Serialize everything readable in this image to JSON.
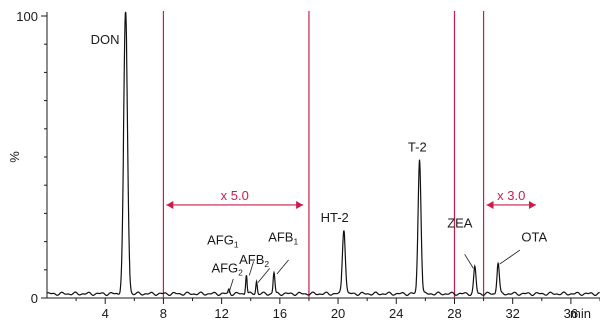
{
  "chart_data": {
    "type": "line",
    "xlabel": "min",
    "ylabel": "%",
    "xlim": [
      0,
      38
    ],
    "ylim": [
      0,
      100
    ],
    "x_ticks": [
      4,
      8,
      12,
      16,
      20,
      24,
      28,
      32,
      36
    ],
    "x_minor_ticks": [
      2,
      6,
      10,
      14,
      18,
      22,
      26,
      30,
      34,
      38
    ],
    "y_ticks": [
      0,
      100
    ],
    "y_minor_ticks": [
      10,
      20,
      30,
      40,
      50,
      60,
      70,
      80,
      90
    ],
    "baseline": 1.5,
    "series": [
      {
        "peaks": [
          {
            "name": "DON",
            "rt": 5.4,
            "height": 100,
            "sigma": 0.13
          },
          {
            "name": "AFG1",
            "rt": 13.7,
            "height": 7,
            "sigma": 0.05
          },
          {
            "name": "AFG2",
            "rt": 12.5,
            "height": 1.5,
            "sigma": 0.05
          },
          {
            "name": "AFB2",
            "rt": 14.4,
            "height": 4.5,
            "sigma": 0.05
          },
          {
            "name": "AFB1",
            "rt": 15.6,
            "height": 7.5,
            "sigma": 0.06
          },
          {
            "name": "HT-2",
            "rt": 20.4,
            "height": 23,
            "sigma": 0.1
          },
          {
            "name": "T-2",
            "rt": 25.6,
            "height": 48,
            "sigma": 0.1
          },
          {
            "name": "ZEA",
            "rt": 29.4,
            "height": 9.5,
            "sigma": 0.08
          },
          {
            "name": "OTA",
            "rt": 31.0,
            "height": 11,
            "sigma": 0.08
          }
        ]
      }
    ],
    "markers": [
      8,
      18,
      28,
      30
    ],
    "scale_annotations": [
      {
        "text": "x 5.0",
        "from": 8.2,
        "to": 17.6,
        "y": 33
      },
      {
        "text": "x 3.0",
        "from": 30.2,
        "to": 33.6,
        "y": 33
      }
    ],
    "peak_labels": [
      {
        "text": "DON",
        "sub": "",
        "x": 3.0,
        "y": 90
      },
      {
        "text": "AFG",
        "sub": "1",
        "x": 11.0,
        "y": 19
      },
      {
        "text": "AFG",
        "sub": "2",
        "x": 11.3,
        "y": 9
      },
      {
        "text": "AFB",
        "sub": "2",
        "x": 13.2,
        "y": 12
      },
      {
        "text": "AFB",
        "sub": "1",
        "x": 15.2,
        "y": 20
      },
      {
        "text": "HT-2",
        "sub": "",
        "x": 18.8,
        "y": 27
      },
      {
        "text": "T-2",
        "sub": "",
        "x": 24.8,
        "y": 52
      },
      {
        "text": "ZEA",
        "sub": "",
        "x": 27.5,
        "y": 25
      },
      {
        "text": "OTA",
        "sub": "",
        "x": 32.6,
        "y": 20
      }
    ]
  }
}
